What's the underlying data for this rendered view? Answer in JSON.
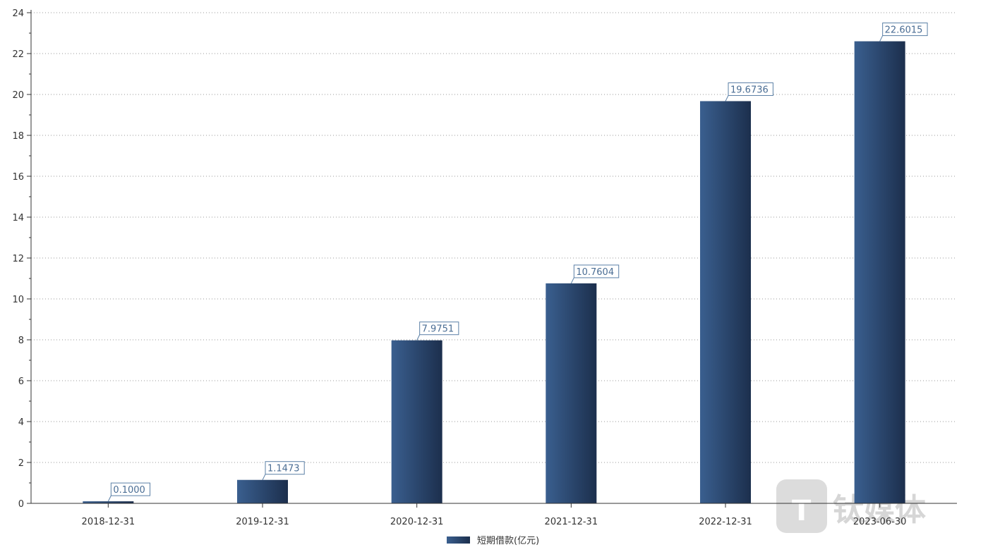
{
  "chart_data": {
    "type": "bar",
    "categories": [
      "2018-12-31",
      "2019-12-31",
      "2020-12-31",
      "2021-12-31",
      "2022-12-31",
      "2023-06-30"
    ],
    "series": [
      {
        "name": "短期借款(亿元)",
        "values": [
          0.1,
          1.1473,
          7.9751,
          10.7604,
          19.6736,
          22.6015
        ],
        "data_labels": [
          "0.1000",
          "1.1473",
          "7.9751",
          "10.7604",
          "19.6736",
          "22.6015"
        ]
      }
    ],
    "ylim": [
      0,
      24
    ],
    "yticks": [
      0,
      2,
      4,
      6,
      8,
      10,
      12,
      14,
      16,
      18,
      20,
      22,
      24
    ],
    "grid": true,
    "legend_position": "bottom-center",
    "colors": {
      "bar_light": "#3a5f8f",
      "bar_dark": "#1c2f4d",
      "label_border": "#5a7fa6",
      "label_text": "#4a6d94",
      "grid": "#999999",
      "axis": "#333333"
    }
  },
  "watermark": {
    "text": "钛媒体",
    "icon": "tmtpost-logo-icon"
  }
}
